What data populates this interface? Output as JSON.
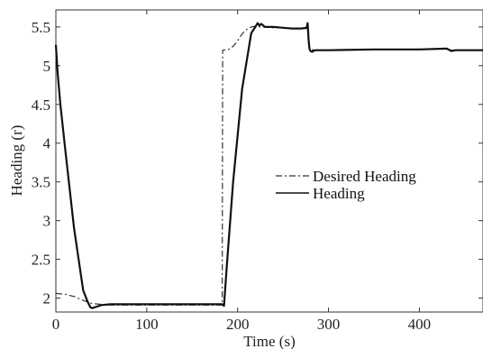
{
  "chart_data": {
    "type": "line",
    "title": "",
    "xlabel": "Time (s)",
    "ylabel": "Heading (r)",
    "xlim": [
      0,
      470
    ],
    "ylim": [
      1.82,
      5.72
    ],
    "xticks": [
      0,
      100,
      200,
      300,
      400
    ],
    "xtick_labels": [
      "0",
      "100",
      "200",
      "300",
      "400"
    ],
    "yticks": [
      2,
      2.5,
      3,
      3.5,
      4,
      4.5,
      5,
      5.5
    ],
    "ytick_labels": [
      "2",
      "2.5",
      "3",
      "3.5",
      "4",
      "4.5",
      "5",
      "5.5"
    ],
    "grid": false,
    "legend_position": "center-right",
    "series": [
      {
        "name": "Desired Heading",
        "style": "dash-dot",
        "color": "#333333",
        "x": [
          0,
          10,
          20,
          30,
          40,
          60,
          100,
          150,
          183,
          183.5,
          190,
          195,
          200,
          205,
          210,
          215,
          220,
          225,
          230,
          240,
          250,
          260,
          270,
          276,
          277,
          278,
          280,
          285,
          290,
          300,
          350,
          400,
          430,
          435,
          440,
          470
        ],
        "y": [
          2.06,
          2.05,
          2.02,
          1.97,
          1.93,
          1.91,
          1.91,
          1.91,
          1.91,
          5.2,
          5.21,
          5.25,
          5.32,
          5.41,
          5.47,
          5.5,
          5.51,
          5.5,
          5.5,
          5.49,
          5.49,
          5.48,
          5.48,
          5.48,
          5.48,
          5.25,
          5.21,
          5.2,
          5.2,
          5.2,
          5.21,
          5.21,
          5.22,
          5.2,
          5.2,
          5.2
        ]
      },
      {
        "name": "Heading",
        "style": "solid",
        "color": "#111111",
        "x": [
          0,
          2,
          5,
          10,
          20,
          30,
          35,
          38,
          40,
          45,
          50,
          60,
          100,
          150,
          183,
          185,
          188,
          195,
          205,
          215,
          220,
          222,
          224,
          226,
          230,
          240,
          250,
          260,
          270,
          276,
          277,
          278,
          279,
          280,
          282,
          285,
          290,
          300,
          350,
          400,
          430,
          435,
          440,
          470
        ],
        "y": [
          5.27,
          4.9,
          4.5,
          3.95,
          2.9,
          2.1,
          1.95,
          1.88,
          1.87,
          1.89,
          1.91,
          1.92,
          1.92,
          1.92,
          1.92,
          1.9,
          2.4,
          3.5,
          4.7,
          5.42,
          5.51,
          5.55,
          5.52,
          5.54,
          5.5,
          5.5,
          5.49,
          5.48,
          5.48,
          5.49,
          5.55,
          5.35,
          5.22,
          5.19,
          5.18,
          5.2,
          5.2,
          5.2,
          5.21,
          5.21,
          5.22,
          5.19,
          5.2,
          5.2
        ]
      }
    ]
  }
}
